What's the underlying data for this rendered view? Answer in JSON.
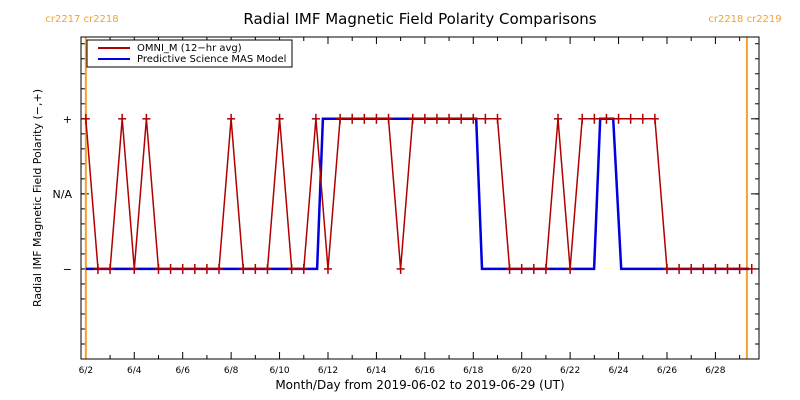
{
  "chart_data": {
    "type": "line",
    "title": "Radial IMF Magnetic Field Polarity Comparisons",
    "xlabel": "Month/Day from 2019-06-02 to 2019-06-29 (UT)",
    "ylabel": "Radial IMF Magnetic Field Polarity (−,+)",
    "x_units": "days since 2019-06-02 00:00 UT",
    "xlim": [
      -0.2,
      27.8
    ],
    "ylim": [
      -2.2,
      2.09
    ],
    "x_ticks": [
      {
        "value": 0,
        "label": "6/2"
      },
      {
        "value": 2,
        "label": "6/4"
      },
      {
        "value": 4,
        "label": "6/6"
      },
      {
        "value": 6,
        "label": "6/8"
      },
      {
        "value": 8,
        "label": "6/10"
      },
      {
        "value": 10,
        "label": "6/12"
      },
      {
        "value": 12,
        "label": "6/14"
      },
      {
        "value": 14,
        "label": "6/16"
      },
      {
        "value": 16,
        "label": "6/18"
      },
      {
        "value": 18,
        "label": "6/20"
      },
      {
        "value": 20,
        "label": "6/22"
      },
      {
        "value": 22,
        "label": "6/24"
      },
      {
        "value": 24,
        "label": "6/26"
      },
      {
        "value": 26,
        "label": "6/28"
      }
    ],
    "y_ticks": [
      {
        "value": 1,
        "label": "+"
      },
      {
        "value": 0,
        "label": "N/A"
      },
      {
        "value": -1,
        "label": "−"
      }
    ],
    "legend": {
      "placement": "top-left",
      "entries": [
        {
          "name": "OMNI_M (12−hr avg)",
          "color": "#b00000"
        },
        {
          "name": "Predictive Science MAS Model",
          "color": "#0000e0"
        }
      ]
    },
    "series": [
      {
        "name": "OMNI_M (12-hr avg)",
        "color": "#b00000",
        "marker": "+",
        "x_step": 0.5,
        "x_start": 0,
        "values": [
          1,
          -1,
          -1,
          1,
          -1,
          1,
          -1,
          -1,
          -1,
          -1,
          -1,
          -1,
          1,
          -1,
          -1,
          -1,
          1,
          -1,
          -1,
          1,
          -1,
          1,
          1,
          1,
          1,
          1,
          -1,
          1,
          1,
          1,
          1,
          1,
          1,
          1,
          1,
          -1,
          -1,
          -1,
          -1,
          1,
          -1,
          1,
          1,
          1,
          1,
          1,
          1,
          1,
          -1,
          -1,
          -1,
          -1,
          -1,
          -1,
          -1,
          -1
        ]
      },
      {
        "name": "Predictive Science MAS Model",
        "color": "#0000e0",
        "points": [
          [
            0,
            -1
          ],
          [
            9.55,
            -1
          ],
          [
            9.79,
            1
          ],
          [
            16.12,
            1
          ],
          [
            16.36,
            -1
          ],
          [
            20.99,
            -1
          ],
          [
            21.24,
            1
          ],
          [
            21.78,
            1
          ],
          [
            22.11,
            -1
          ],
          [
            27.4,
            -1
          ]
        ]
      }
    ],
    "carrington_markers": [
      {
        "x": 0,
        "label": "cr2217 cr2218",
        "color": "#f5a030"
      },
      {
        "x": 27.3,
        "label": "cr2218 cr2219",
        "color": "#f5a030"
      }
    ]
  }
}
